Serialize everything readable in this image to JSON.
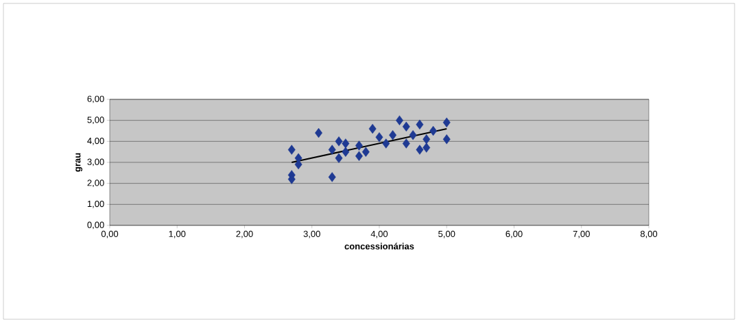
{
  "chart_data": {
    "type": "scatter",
    "xlabel": "concessionárias",
    "ylabel": "grau",
    "xlim": [
      0,
      8
    ],
    "xticks": [
      {
        "value": 0,
        "label": "0,00"
      },
      {
        "value": 1,
        "label": "1,00"
      },
      {
        "value": 2,
        "label": "2,00"
      },
      {
        "value": 3,
        "label": "3,00"
      },
      {
        "value": 4,
        "label": "4,00"
      },
      {
        "value": 5,
        "label": "5,00"
      },
      {
        "value": 6,
        "label": "6,00"
      },
      {
        "value": 7,
        "label": "7,00"
      },
      {
        "value": 8,
        "label": "8,00"
      }
    ],
    "ylim": [
      0,
      6
    ],
    "yticks": [
      {
        "value": 0,
        "label": "0,00"
      },
      {
        "value": 1,
        "label": "1,00"
      },
      {
        "value": 2,
        "label": "2,00"
      },
      {
        "value": 3,
        "label": "3,00"
      },
      {
        "value": 4,
        "label": "4,00"
      },
      {
        "value": 5,
        "label": "5,00"
      },
      {
        "value": 6,
        "label": "6,00"
      }
    ],
    "grid": "y",
    "series": [
      {
        "marker": "diamond",
        "color": "#1f3a93",
        "x": [
          2.7,
          2.8,
          2.8,
          2.7,
          2.7,
          3.1,
          3.3,
          3.3,
          3.4,
          3.5,
          3.4,
          3.5,
          3.7,
          3.7,
          3.8,
          3.9,
          4.0,
          4.1,
          4.2,
          4.3,
          4.4,
          4.4,
          4.6,
          4.5,
          4.6,
          4.7,
          4.7,
          4.8,
          5.0,
          5.0
        ],
        "values": [
          3.6,
          3.2,
          2.9,
          2.4,
          2.2,
          4.4,
          2.3,
          3.6,
          4.0,
          3.9,
          3.2,
          3.5,
          3.8,
          3.3,
          3.5,
          4.6,
          4.2,
          3.9,
          4.3,
          5.0,
          4.7,
          3.9,
          4.8,
          4.3,
          3.6,
          3.7,
          4.1,
          4.5,
          4.9,
          4.1
        ]
      },
      {
        "type": "line",
        "color": "#000000",
        "x": [
          2.7,
          5.0
        ],
        "values": [
          3.0,
          4.6
        ]
      }
    ]
  }
}
